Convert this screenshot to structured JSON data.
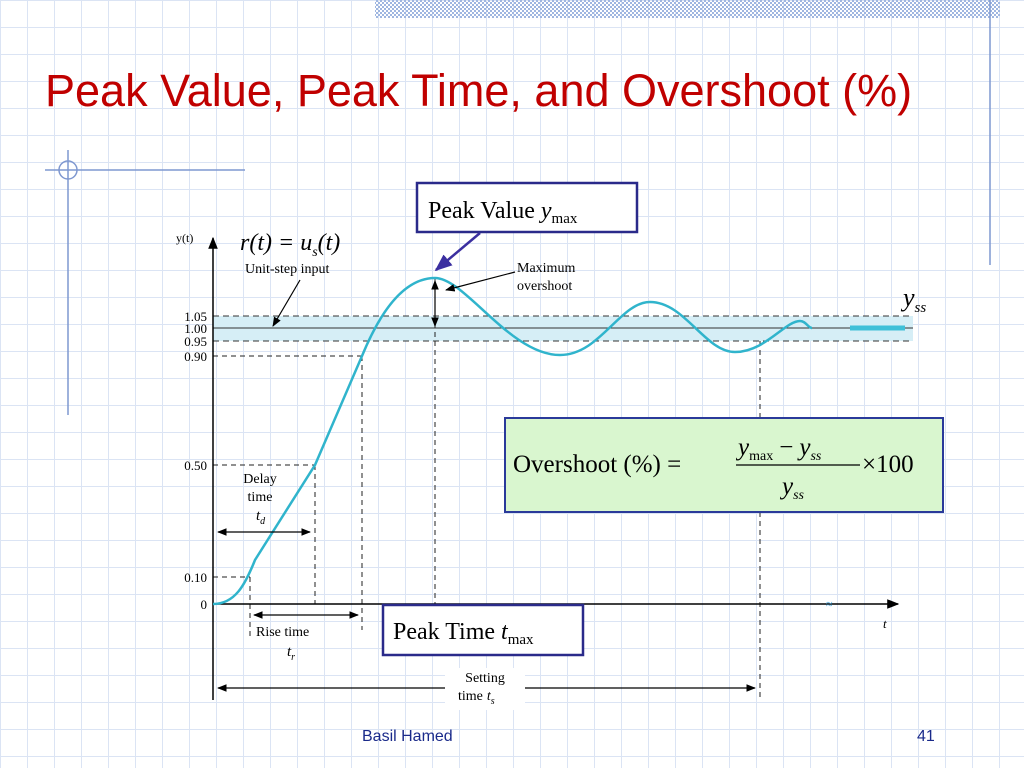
{
  "title": "Peak Value, Peak Time, and Overshoot (%)",
  "footer": {
    "author": "Basil Hamed",
    "page": "41"
  },
  "diagram": {
    "y_axis_label": "y(t)",
    "x_axis_label": "t",
    "y_levels": [
      "1.05",
      "1.00",
      "0.95",
      "0.90",
      "0.50",
      "0.10",
      "0"
    ],
    "input_label": {
      "main": "r(t) = u",
      "sub": "s",
      "tail": "(t)"
    },
    "input_caption": "Unit-step input",
    "overshoot_caption": [
      "Maximum",
      "overshoot"
    ],
    "peak_value": {
      "text": "Peak Value",
      "symbol": "y",
      "sub": "max"
    },
    "steady_state": {
      "symbol": "y",
      "sub": "ss"
    },
    "formula": {
      "lhs": "Overshoot (%) =",
      "num_symbol1": "y",
      "num_sub1": "max",
      "minus": "−",
      "num_symbol2": "y",
      "num_sub2": "ss",
      "den_symbol": "y",
      "den_sub": "ss",
      "factor": "×100"
    },
    "delay": {
      "lines": [
        "Delay",
        "time"
      ],
      "symbol": "t",
      "sub": "d"
    },
    "rise": {
      "line": "Rise time",
      "symbol": "t",
      "sub": "r"
    },
    "peak_time": {
      "text": "Peak Time",
      "symbol": "t",
      "sub": "max"
    },
    "settling": {
      "lines": [
        "Setting",
        "time"
      ],
      "symbol": "t",
      "sub": "s"
    }
  }
}
